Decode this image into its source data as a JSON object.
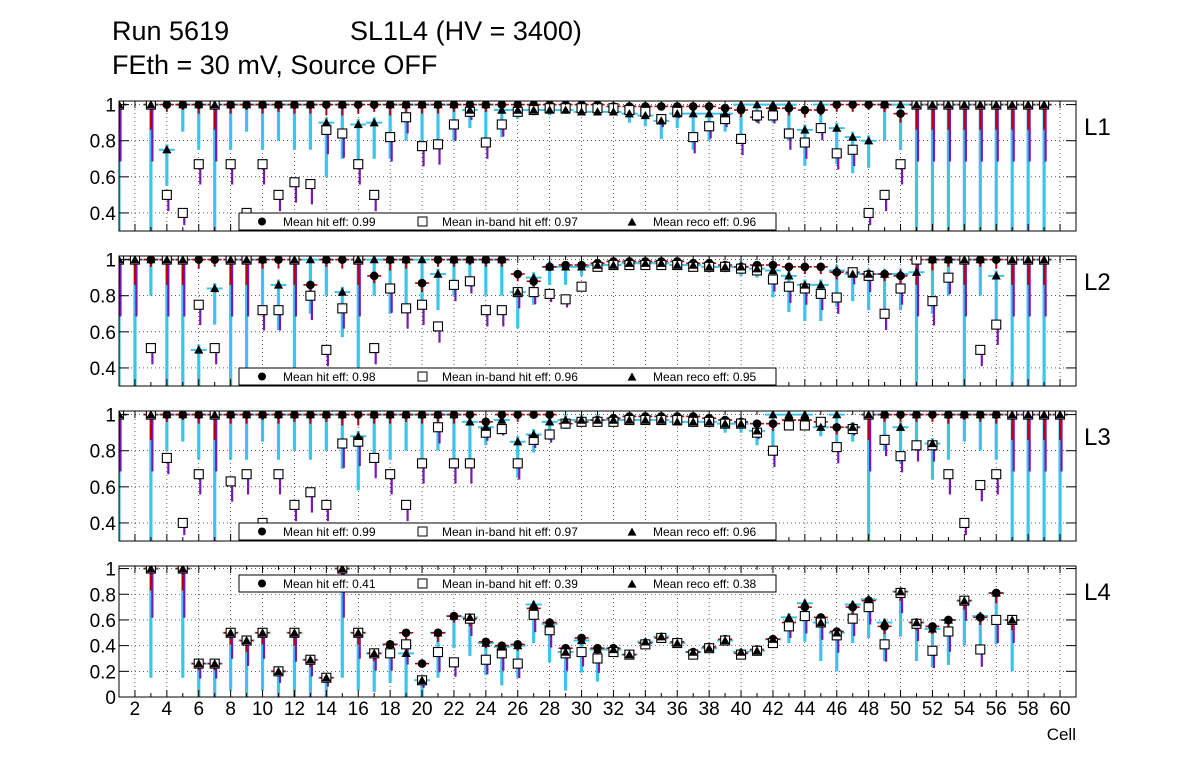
{
  "chart_data": {
    "type": "scatter",
    "title_line1_left": "Run 5619",
    "title_line1_right": "SL1L4 (HV = 3400)",
    "title_line2": "FEth = 30 mV, Source OFF",
    "xlabel": "Cell",
    "xlim": [
      1,
      61
    ],
    "x_ticks": [
      2,
      4,
      6,
      8,
      10,
      12,
      14,
      16,
      18,
      20,
      22,
      24,
      26,
      28,
      30,
      32,
      34,
      36,
      38,
      40,
      42,
      44,
      46,
      48,
      50,
      52,
      54,
      56,
      58,
      60
    ],
    "grid": true,
    "colors": {
      "hit_err": "#b5000a",
      "inband_err": "#7a17b6",
      "reco_err": "#3cc4ec",
      "marker": "#000000",
      "inband_face": "#ffffff"
    },
    "series_names": [
      "Mean hit  eff",
      "Mean in-band hit eff",
      "Mean reco eff"
    ],
    "panels": [
      {
        "layer": "L1",
        "ylim": [
          0.3,
          1.02
        ],
        "y_ticks": [
          0.4,
          0.6,
          0.8,
          1
        ],
        "mean_hit_eff": "0.99",
        "mean_inband_eff": "0.97",
        "mean_reco_eff": "0.96",
        "legend_position": "bottom-center",
        "cells": [
          1,
          3,
          4,
          5,
          6,
          7,
          8,
          9,
          10,
          11,
          12,
          13,
          14,
          15,
          16,
          17,
          18,
          19,
          20,
          21,
          22,
          23,
          24,
          25,
          26,
          27,
          28,
          29,
          30,
          31,
          32,
          33,
          34,
          35,
          36,
          37,
          38,
          39,
          40,
          41,
          42,
          43,
          44,
          45,
          46,
          47,
          48,
          49,
          50,
          51,
          52,
          53,
          54,
          55,
          56,
          57,
          58,
          59
        ],
        "hit": [
          1,
          1,
          1,
          1,
          1,
          1,
          1,
          1,
          1,
          1,
          1,
          1,
          1,
          1,
          1,
          1,
          1,
          1,
          1,
          1,
          1,
          1,
          1,
          1,
          1,
          1,
          1,
          1,
          1,
          1,
          0.99,
          0.99,
          0.99,
          0.99,
          0.99,
          0.99,
          0.99,
          0.98,
          0.97,
          0.93,
          0.98,
          0.98,
          0.97,
          0.97,
          1,
          1,
          1,
          1,
          0.95,
          1,
          1,
          1,
          1,
          1,
          1,
          1,
          1,
          1
        ],
        "inband": [
          1,
          1,
          0.5,
          0.4,
          0.67,
          1,
          0.67,
          0.4,
          0.67,
          0.5,
          0.57,
          0.56,
          0.86,
          0.84,
          0.67,
          0.5,
          0.82,
          0.93,
          0.77,
          0.78,
          0.89,
          0.96,
          0.79,
          0.89,
          0.96,
          0.97,
          0.98,
          0.98,
          0.98,
          0.98,
          0.98,
          0.97,
          0.96,
          0.92,
          0.96,
          0.82,
          0.88,
          0.92,
          0.81,
          0.94,
          0.94,
          0.84,
          0.79,
          0.87,
          0.73,
          0.75,
          0.4,
          0.5,
          0.67,
          1,
          1,
          1,
          1,
          1,
          1,
          1,
          1,
          1
        ],
        "reco": [
          1,
          1,
          0.75,
          1,
          1,
          1,
          1,
          1,
          1,
          1,
          1,
          1,
          0.9,
          1,
          0.89,
          0.9,
          1,
          1,
          1,
          1,
          1,
          0.97,
          1,
          0.97,
          0.97,
          0.97,
          0.97,
          0.97,
          0.96,
          0.96,
          0.96,
          0.95,
          0.94,
          0.91,
          0.95,
          0.95,
          0.95,
          0.95,
          1,
          1,
          1,
          1,
          0.86,
          1,
          0.87,
          0.82,
          0.8,
          1,
          1,
          1,
          1,
          1,
          1,
          1,
          1,
          1,
          1,
          1
        ],
        "err_low": [
          0.7,
          0.7,
          0.2,
          0.15,
          0.25,
          0.7,
          0.25,
          0.15,
          0.25,
          0.2,
          0.25,
          0.25,
          0.3,
          0.3,
          0.25,
          0.2,
          0.3,
          0.2,
          0.25,
          0.25,
          0.2,
          0.1,
          0.2,
          0.15,
          0.05,
          0.03,
          0.03,
          0.02,
          0.02,
          0.02,
          0.02,
          0.05,
          0.06,
          0.1,
          0.08,
          0.2,
          0.15,
          0.1,
          0.2,
          0.1,
          0.1,
          0.2,
          0.2,
          0.15,
          0.2,
          0.2,
          0.15,
          0.2,
          0.25,
          0.7,
          0.7,
          0.7,
          0.7,
          0.7,
          0.7,
          0.7,
          0.7,
          0.7
        ]
      },
      {
        "layer": "L2",
        "ylim": [
          0.3,
          1.02
        ],
        "y_ticks": [
          0.4,
          0.6,
          0.8,
          1
        ],
        "mean_hit_eff": "0.98",
        "mean_inband_eff": "0.96",
        "mean_reco_eff": "0.95",
        "legend_position": "bottom-center",
        "cells": [
          1,
          2,
          3,
          4,
          5,
          6,
          7,
          8,
          9,
          10,
          11,
          12,
          13,
          14,
          15,
          16,
          17,
          18,
          19,
          20,
          21,
          22,
          23,
          24,
          25,
          26,
          27,
          28,
          29,
          30,
          31,
          32,
          33,
          34,
          35,
          36,
          37,
          38,
          39,
          40,
          41,
          42,
          43,
          44,
          45,
          46,
          47,
          48,
          49,
          50,
          51,
          52,
          53,
          54,
          55,
          56,
          57,
          58,
          59
        ],
        "hit": [
          1,
          1,
          1,
          1,
          1,
          1,
          1,
          1,
          1,
          1,
          1,
          1,
          0.86,
          1,
          1,
          1,
          0.91,
          1,
          1,
          0.87,
          1,
          1,
          1,
          1,
          1,
          0.92,
          0.88,
          0.96,
          0.97,
          0.97,
          0.98,
          0.99,
          0.99,
          0.99,
          0.99,
          0.99,
          0.98,
          0.98,
          0.97,
          0.96,
          0.97,
          0.97,
          0.96,
          0.96,
          0.96,
          0.93,
          0.93,
          0.92,
          0.92,
          0.91,
          1,
          1,
          1,
          1,
          1,
          1,
          1,
          1,
          1
        ],
        "inband": [
          1,
          1,
          0.51,
          1,
          1,
          0.75,
          0.51,
          1,
          1,
          0.72,
          0.72,
          1,
          0.8,
          0.5,
          0.73,
          1,
          0.51,
          0.84,
          0.73,
          0.75,
          0.63,
          0.86,
          0.88,
          0.72,
          0.72,
          0.82,
          0.82,
          0.81,
          0.78,
          0.85,
          0.96,
          0.97,
          0.97,
          0.97,
          0.97,
          0.97,
          0.96,
          0.96,
          0.96,
          0.95,
          0.94,
          0.89,
          0.85,
          0.84,
          0.81,
          0.79,
          0.93,
          0.91,
          0.7,
          0.84,
          1,
          0.77,
          0.9,
          1,
          0.5,
          0.64,
          1,
          1,
          1
        ],
        "reco": [
          1,
          1,
          1,
          1,
          1,
          0.5,
          0.84,
          1,
          1,
          1,
          0.86,
          1,
          1,
          1,
          0.82,
          1,
          1,
          1,
          1,
          1,
          0.92,
          1,
          1,
          1,
          1,
          0.82,
          0.9,
          0.96,
          0.96,
          0.96,
          0.97,
          0.97,
          0.98,
          0.98,
          0.98,
          0.97,
          0.97,
          0.96,
          0.96,
          0.96,
          0.95,
          0.94,
          0.91,
          0.86,
          0.86,
          0.94,
          0.92,
          0.92,
          0.92,
          0.92,
          0.93,
          1,
          1,
          1,
          1,
          0.91,
          1,
          1,
          1
        ],
        "err_low": [
          0.7,
          0.7,
          0.2,
          0.7,
          0.7,
          0.25,
          0.2,
          0.7,
          0.7,
          0.25,
          0.25,
          0.7,
          0.3,
          0.2,
          0.25,
          0.7,
          0.2,
          0.3,
          0.25,
          0.25,
          0.2,
          0.2,
          0.15,
          0.2,
          0.2,
          0.2,
          0.15,
          0.1,
          0.1,
          0.05,
          0.03,
          0.02,
          0.02,
          0.02,
          0.02,
          0.02,
          0.03,
          0.03,
          0.03,
          0.05,
          0.05,
          0.15,
          0.2,
          0.2,
          0.2,
          0.2,
          0.15,
          0.2,
          0.2,
          0.2,
          0.7,
          0.3,
          0.2,
          0.7,
          0.2,
          0.25,
          0.7,
          0.7,
          0.7
        ]
      },
      {
        "layer": "L3",
        "ylim": [
          0.3,
          1.02
        ],
        "y_ticks": [
          0.4,
          0.6,
          0.8,
          1
        ],
        "mean_hit_eff": "0.99",
        "mean_inband_eff": "0.97",
        "mean_reco_eff": "0.96",
        "legend_position": "bottom-center",
        "cells": [
          1,
          3,
          4,
          5,
          6,
          7,
          8,
          9,
          10,
          11,
          12,
          13,
          14,
          15,
          16,
          17,
          18,
          19,
          20,
          21,
          22,
          23,
          24,
          25,
          26,
          27,
          28,
          29,
          30,
          31,
          32,
          33,
          34,
          35,
          36,
          37,
          38,
          39,
          40,
          41,
          42,
          43,
          44,
          45,
          46,
          47,
          48,
          49,
          50,
          51,
          52,
          53,
          54,
          55,
          56,
          57,
          58,
          59,
          60
        ],
        "hit": [
          1,
          1,
          1,
          1,
          1,
          1,
          1,
          1,
          1,
          1,
          1,
          1,
          1,
          1,
          1,
          1,
          1,
          1,
          1,
          1,
          1,
          1,
          0.96,
          1,
          1,
          1,
          1,
          0.95,
          0.96,
          0.97,
          0.98,
          0.99,
          0.99,
          0.99,
          0.99,
          0.99,
          0.98,
          0.97,
          0.96,
          0.95,
          0.95,
          0.97,
          0.97,
          0.96,
          0.93,
          0.93,
          1,
          1,
          1,
          1,
          1,
          1,
          1,
          1,
          1,
          1,
          1,
          1,
          1
        ],
        "inband": [
          1,
          1,
          0.76,
          0.4,
          0.67,
          1,
          0.63,
          0.67,
          0.4,
          0.67,
          0.5,
          0.57,
          0.5,
          0.84,
          0.85,
          0.76,
          0.67,
          0.5,
          0.73,
          0.93,
          0.73,
          0.73,
          0.9,
          0.92,
          0.73,
          0.86,
          0.89,
          0.95,
          0.96,
          0.96,
          0.96,
          0.97,
          0.97,
          0.97,
          0.97,
          0.96,
          0.96,
          0.95,
          0.95,
          0.9,
          0.8,
          0.94,
          0.94,
          0.96,
          0.82,
          0.92,
          1,
          0.86,
          0.77,
          0.83,
          0.83,
          0.67,
          0.4,
          0.61,
          0.67,
          1,
          1,
          1,
          1
        ],
        "reco": [
          1,
          1,
          1,
          1,
          1,
          1,
          1,
          1,
          1,
          1,
          1,
          1,
          1,
          1,
          0.88,
          1,
          1,
          1,
          1,
          1,
          1,
          0.96,
          0.93,
          0.97,
          0.85,
          0.89,
          0.96,
          0.97,
          0.97,
          0.97,
          0.97,
          0.97,
          0.97,
          0.97,
          0.96,
          0.96,
          0.96,
          0.95,
          0.95,
          0.91,
          1,
          1,
          1,
          0.93,
          1,
          0.93,
          1,
          1,
          0.93,
          1,
          0.84,
          1,
          1,
          1,
          1,
          1,
          1,
          1,
          1
        ],
        "err_low": [
          0.7,
          0.7,
          0.2,
          0.15,
          0.25,
          0.7,
          0.25,
          0.25,
          0.15,
          0.25,
          0.2,
          0.25,
          0.2,
          0.3,
          0.3,
          0.25,
          0.25,
          0.2,
          0.25,
          0.2,
          0.25,
          0.25,
          0.1,
          0.08,
          0.2,
          0.1,
          0.1,
          0.05,
          0.03,
          0.03,
          0.03,
          0.02,
          0.02,
          0.02,
          0.02,
          0.03,
          0.03,
          0.05,
          0.05,
          0.08,
          0.2,
          0.05,
          0.05,
          0.05,
          0.2,
          0.08,
          0.7,
          0.2,
          0.2,
          0.2,
          0.2,
          0.25,
          0.15,
          0.2,
          0.25,
          0.7,
          0.7,
          0.7,
          0.7
        ]
      },
      {
        "layer": "L4",
        "ylim": [
          0,
          1.02
        ],
        "y_ticks": [
          0,
          0.2,
          0.4,
          0.6,
          0.8,
          1
        ],
        "mean_hit_eff": "0.41",
        "mean_inband_eff": "0.39",
        "mean_reco_eff": "0.38",
        "legend_position": "top-center",
        "cells": [
          3,
          5,
          6,
          7,
          8,
          9,
          10,
          11,
          12,
          13,
          14,
          15,
          16,
          17,
          18,
          19,
          20,
          21,
          22,
          23,
          24,
          25,
          26,
          27,
          28,
          29,
          30,
          31,
          32,
          33,
          34,
          35,
          36,
          37,
          38,
          39,
          40,
          41,
          42,
          43,
          44,
          45,
          46,
          47,
          48,
          49,
          50,
          51,
          52,
          53,
          54,
          55,
          56,
          57
        ],
        "hit": [
          1,
          1,
          0.26,
          0.26,
          0.5,
          0.44,
          0.5,
          0.2,
          0.5,
          0.29,
          0.15,
          1,
          0.5,
          0.34,
          0.41,
          0.5,
          0.26,
          0.5,
          0.63,
          0.61,
          0.43,
          0.4,
          0.41,
          0.69,
          0.58,
          0.38,
          0.46,
          0.38,
          0.38,
          0.33,
          0.42,
          0.46,
          0.43,
          0.35,
          0.39,
          0.45,
          0.34,
          0.37,
          0.45,
          0.58,
          0.7,
          0.62,
          0.51,
          0.7,
          0.75,
          0.55,
          0.82,
          0.58,
          0.55,
          0.6,
          0.75,
          0.62,
          0.81,
          0.6
        ],
        "inband": [
          1,
          1,
          0.26,
          0.26,
          0.5,
          0.44,
          0.5,
          0.2,
          0.5,
          0.29,
          0.15,
          1,
          0.5,
          0.34,
          0.34,
          0.41,
          0.13,
          0.35,
          0.27,
          0.61,
          0.29,
          0.34,
          0.26,
          0.64,
          0.52,
          0.34,
          0.35,
          0.3,
          0.35,
          0.33,
          0.41,
          0.46,
          0.42,
          0.33,
          0.38,
          0.44,
          0.33,
          0.36,
          0.42,
          0.55,
          0.63,
          0.58,
          0.48,
          0.61,
          0.7,
          0.41,
          0.81,
          0.57,
          0.36,
          0.51,
          0.75,
          0.37,
          0.6,
          0.6
        ],
        "reco": [
          1,
          1,
          0.26,
          0.26,
          0.5,
          0.44,
          0.5,
          0.2,
          0.5,
          0.29,
          0.15,
          1,
          0.5,
          0.34,
          0.41,
          0.34,
          0.13,
          0.5,
          0.63,
          0.62,
          0.42,
          0.39,
          0.4,
          0.72,
          0.57,
          0.35,
          0.44,
          0.37,
          0.37,
          0.33,
          0.43,
          0.47,
          0.42,
          0.35,
          0.38,
          0.44,
          0.35,
          0.36,
          0.45,
          0.62,
          0.73,
          0.58,
          0.5,
          0.72,
          0.76,
          0.58,
          0.82,
          0.58,
          0.53,
          0.6,
          0.75,
          0.63,
          0.81,
          0.6
        ],
        "err_low": [
          0.85,
          0.85,
          0.26,
          0.26,
          0.45,
          0.44,
          0.45,
          0.2,
          0.5,
          0.29,
          0.15,
          0.85,
          0.45,
          0.3,
          0.3,
          0.35,
          0.13,
          0.35,
          0.25,
          0.3,
          0.25,
          0.3,
          0.25,
          0.3,
          0.3,
          0.3,
          0.25,
          0.25,
          0.05,
          0.03,
          0.03,
          0.03,
          0.03,
          0.03,
          0.03,
          0.03,
          0.03,
          0.03,
          0.05,
          0.2,
          0.3,
          0.3,
          0.3,
          0.3,
          0.3,
          0.3,
          0.35,
          0.3,
          0.3,
          0.35,
          0.35,
          0.3,
          0.4,
          0.4
        ]
      }
    ]
  }
}
